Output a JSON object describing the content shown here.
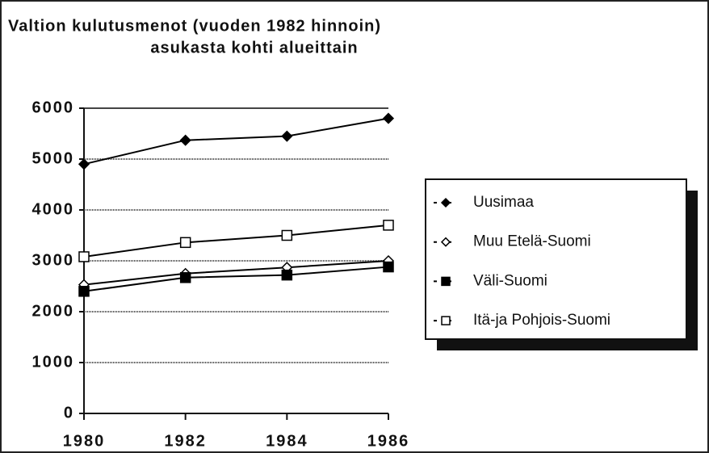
{
  "chart_data": {
    "type": "line",
    "title": [
      "Valtion kulutusmenot (vuoden 1982 hinnoin)",
      "asukasta kohti alueittain"
    ],
    "x": [
      1980,
      1982,
      1984,
      1986
    ],
    "xlim": [
      1980,
      1986
    ],
    "xticks": [
      1980,
      1982,
      1984,
      1986
    ],
    "ylim": [
      0,
      6000
    ],
    "yticks": [
      0,
      1000,
      2000,
      3000,
      4000,
      5000,
      6000
    ],
    "grid": true,
    "legend": "right",
    "series": [
      {
        "name": "Uusimaa",
        "color": "#000000",
        "marker": "diamond",
        "filled": true,
        "values": [
          4900,
          5370,
          5450,
          5800
        ]
      },
      {
        "name": "Muu Etelä-Suomi",
        "color": "#000000",
        "marker": "diamond",
        "filled": false,
        "values": [
          2530,
          2750,
          2870,
          3000
        ]
      },
      {
        "name": "Väli-Suomi",
        "color": "#000000",
        "marker": "square",
        "filled": true,
        "values": [
          2400,
          2670,
          2720,
          2880
        ]
      },
      {
        "name": "Itä-ja Pohjois-Suomi",
        "color": "#000000",
        "marker": "square",
        "filled": false,
        "values": [
          3080,
          3360,
          3500,
          3700
        ]
      }
    ]
  }
}
